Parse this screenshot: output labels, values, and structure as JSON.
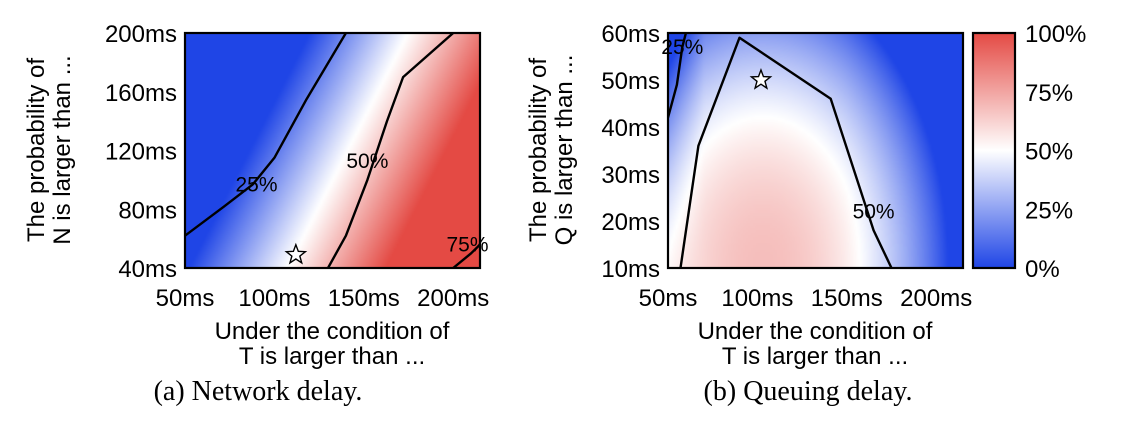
{
  "colors": {
    "low": "#1f45e6",
    "mid": "#ffffff",
    "high": "#e44a44"
  },
  "chart_data": [
    {
      "type": "heatmap",
      "caption": "(a)  Network delay.",
      "xlabel": [
        "Under the condition of",
        "T is larger than ..."
      ],
      "ylabel": [
        "The probability of",
        "N is larger than ..."
      ],
      "x_ticks": [
        "50ms",
        "100ms",
        "150ms",
        "200ms"
      ],
      "y_ticks": [
        "40ms",
        "80ms",
        "120ms",
        "160ms",
        "200ms"
      ],
      "x_range": [
        50,
        215
      ],
      "y_range": [
        40,
        200
      ],
      "x_unit": "ms",
      "y_unit": "ms",
      "value_unit": "%",
      "contours": [
        {
          "label": "25%",
          "level": 25,
          "points": [
            [
              50,
              62
            ],
            [
              72,
              82
            ],
            [
              88,
              97
            ],
            [
              100,
              115
            ],
            [
              118,
              155
            ],
            [
              140,
              200
            ]
          ]
        },
        {
          "label": "50%",
          "level": 50,
          "points": [
            [
              130,
              40
            ],
            [
              140,
              62
            ],
            [
              152,
              100
            ],
            [
              163,
              140
            ],
            [
              172,
              170
            ],
            [
              200,
              200
            ]
          ]
        },
        {
          "label": "75%",
          "level": 75,
          "points": [
            [
              200,
              40
            ],
            [
              210,
              50
            ],
            [
              225,
              68
            ],
            [
              230,
              80
            ]
          ]
        }
      ],
      "label_positions": [
        {
          "text": "25%",
          "x": 90,
          "y": 97
        },
        {
          "text": "50%",
          "x": 152,
          "y": 113
        },
        {
          "text": "75%",
          "x": 208,
          "y": 56
        }
      ],
      "marker": {
        "shape": "star",
        "x": 112,
        "y": 49
      }
    },
    {
      "type": "heatmap",
      "caption": "(b)  Queuing delay.",
      "xlabel": [
        "Under the condition of",
        "T is larger than ..."
      ],
      "ylabel": [
        "The probability of",
        "Q is larger than ..."
      ],
      "x_ticks": [
        "50ms",
        "100ms",
        "150ms",
        "200ms"
      ],
      "y_ticks": [
        "10ms",
        "20ms",
        "30ms",
        "40ms",
        "50ms",
        "60ms"
      ],
      "x_range": [
        50,
        215
      ],
      "y_range": [
        10,
        60
      ],
      "x_unit": "ms",
      "y_unit": "ms",
      "value_unit": "%",
      "contours": [
        {
          "label": "25%",
          "level": 25,
          "points": [
            [
              50,
              42
            ],
            [
              55,
              49
            ],
            [
              58,
              57
            ],
            [
              60,
              60
            ]
          ]
        },
        {
          "label": "50%",
          "level": 50,
          "points": [
            [
              57,
              10
            ],
            [
              67,
              36
            ],
            [
              90,
              59
            ],
            [
              141,
              46
            ],
            [
              165,
              18
            ],
            [
              175,
              10
            ]
          ]
        }
      ],
      "label_positions": [
        {
          "text": "25%",
          "x": 58,
          "y": 57
        },
        {
          "text": "50%",
          "x": 165,
          "y": 22
        }
      ],
      "marker": {
        "shape": "star",
        "x": 102,
        "y": 50
      }
    }
  ],
  "colorbar": {
    "ticks": [
      {
        "label": "100%",
        "value": 100
      },
      {
        "label": "75%",
        "value": 75
      },
      {
        "label": "50%",
        "value": 50
      },
      {
        "label": "25%",
        "value": 25
      },
      {
        "label": "0%",
        "value": 0
      }
    ],
    "range": [
      0,
      100
    ]
  }
}
